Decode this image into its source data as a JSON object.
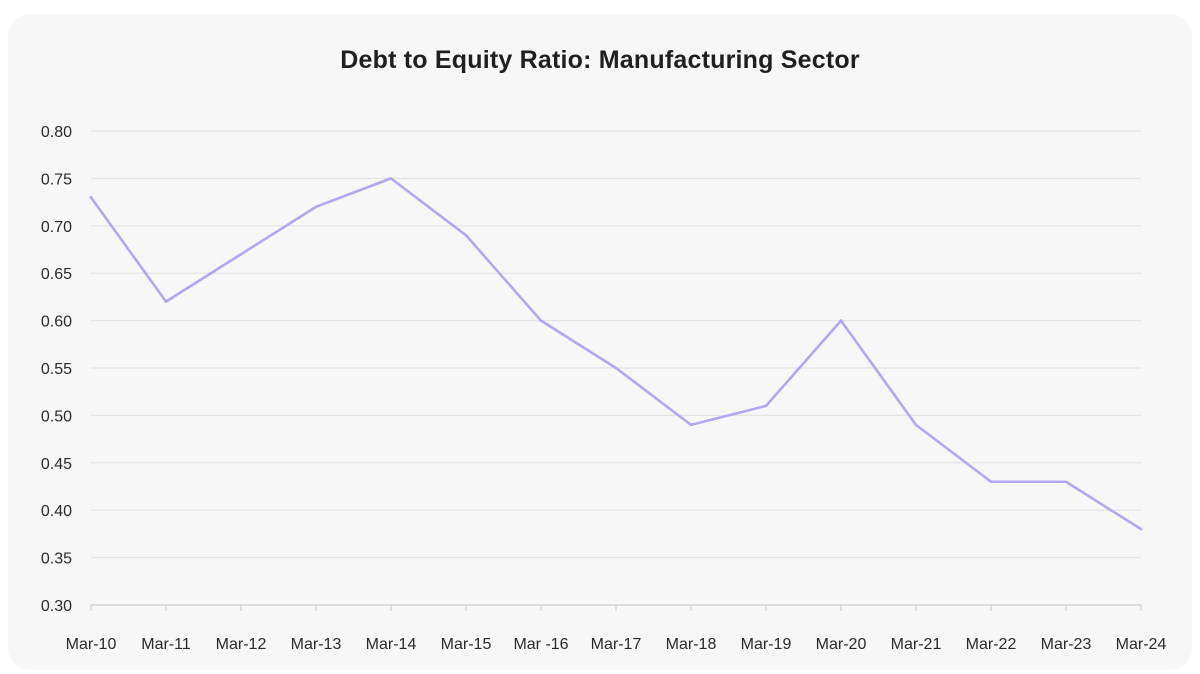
{
  "chart_data": {
    "type": "line",
    "title": "Debt to Equity Ratio: Manufacturing Sector",
    "xlabel": "",
    "ylabel": "",
    "categories": [
      "Mar-10",
      "Mar-11",
      "Mar-12",
      "Mar-13",
      "Mar-14",
      "Mar-15",
      "Mar -16",
      "Mar-17",
      "Mar-18",
      "Mar-19",
      "Mar-20",
      "Mar-21",
      "Mar-22",
      "Mar-23",
      "Mar-24"
    ],
    "series": [
      {
        "values": [
          0.73,
          0.62,
          0.67,
          0.72,
          0.75,
          0.69,
          0.6,
          0.55,
          0.49,
          0.51,
          0.6,
          0.49,
          0.43,
          0.43,
          0.38
        ]
      }
    ],
    "ylim": [
      0.3,
      0.8
    ],
    "yticks": [
      "0.80",
      "0.75",
      "0.70",
      "0.65",
      "0.60",
      "0.55",
      "0.50",
      "0.45",
      "0.40",
      "0.35",
      "0.30"
    ],
    "grid": true,
    "legend": "none",
    "colors": {
      "line": "#b3a6f2",
      "grid": "#e4e4e4",
      "axis": "#cfcfcf",
      "background": "#f7f7f7"
    }
  }
}
